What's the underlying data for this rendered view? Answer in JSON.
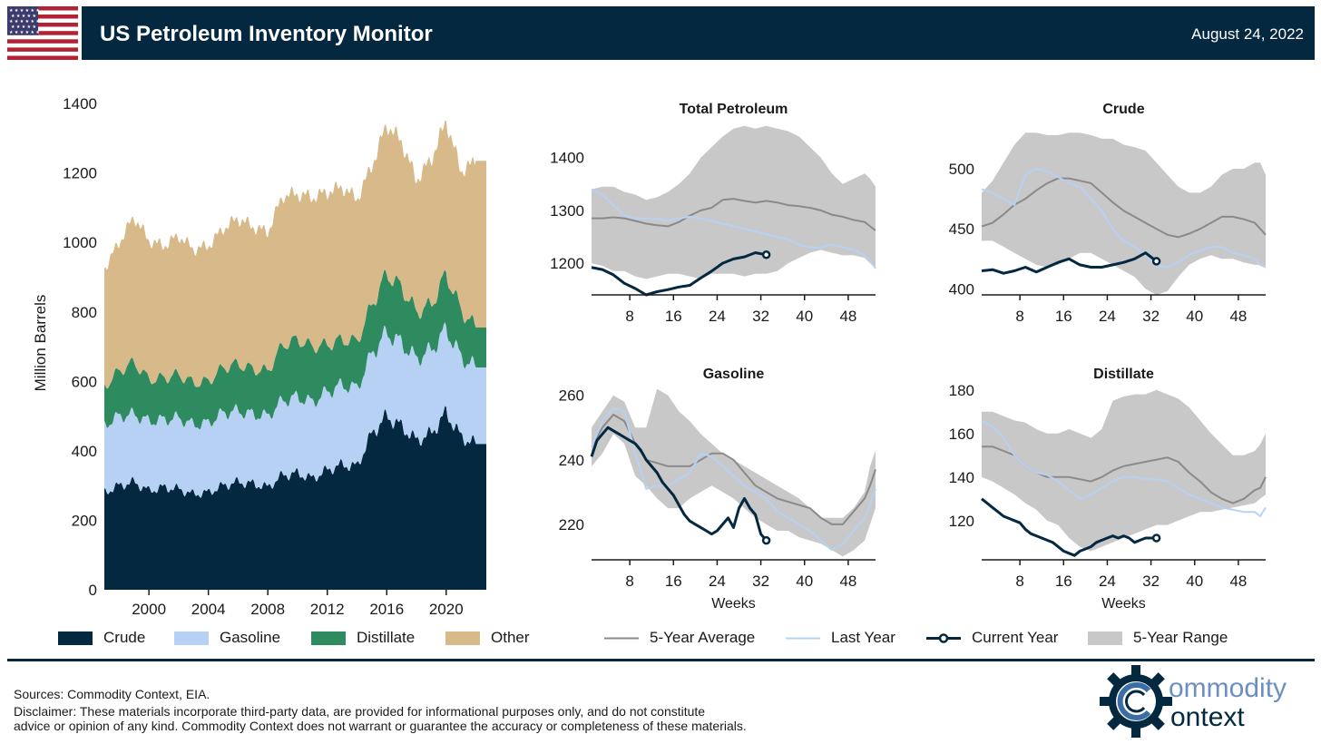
{
  "header": {
    "title": "US Petroleum Inventory Monitor",
    "date": "August 24, 2022"
  },
  "colors": {
    "navy": "#032840",
    "crude": "#032840",
    "gasoline": "#b7d1f5",
    "distillate": "#2e8b5f",
    "other": "#d7b98a",
    "range": "#c8c8c8",
    "avg": "#8a8a8a",
    "last_year": "#b7d1f5",
    "current": "#032840"
  },
  "stack_chart": {
    "ylabel": "Million Barrels",
    "yticks": [
      "0",
      "200",
      "400",
      "600",
      "800",
      "1000",
      "1200",
      "1400"
    ],
    "xticks": [
      "2000",
      "2004",
      "2008",
      "2012",
      "2016",
      "2020"
    ],
    "legend": [
      "Crude",
      "Gasoline",
      "Distillate",
      "Other"
    ]
  },
  "small_legend": [
    "5-Year Average",
    "Last Year",
    "Current Year",
    "5-Year Range"
  ],
  "footer": {
    "sources": "Sources: Commodity Context, EIA.",
    "disclaimer1": "Disclaimer: These materials incorporate third-party data, are provided for informational purposes only, and do not constitute",
    "disclaimer2": "advice or opinion of any kind. Commodity Context does not warrant or guarantee the accuracy or completeness of these materials."
  },
  "logo": {
    "text1": "ommodity",
    "text2": "ontext"
  },
  "chart_data": [
    {
      "type": "area",
      "stacked": true,
      "ylabel": "Million Barrels",
      "ylim": [
        0,
        1450
      ],
      "xlim": [
        1997,
        2022.7
      ],
      "x": [
        1997,
        1998,
        1999,
        2000,
        2001,
        2002,
        2003,
        2004,
        2005,
        2006,
        2007,
        2008,
        2009,
        2010,
        2011,
        2012,
        2013,
        2014,
        2015,
        2016,
        2017,
        2018,
        2019,
        2020,
        2021,
        2022
      ],
      "series": [
        {
          "name": "Crude",
          "values": [
            280,
            300,
            310,
            285,
            295,
            290,
            275,
            280,
            300,
            310,
            305,
            295,
            330,
            335,
            320,
            345,
            360,
            355,
            450,
            500,
            470,
            430,
            450,
            510,
            440,
            420
          ]
        },
        {
          "name": "Gasoline",
          "values": [
            195,
            200,
            195,
            200,
            195,
            205,
            200,
            200,
            210,
            205,
            200,
            205,
            215,
            220,
            220,
            225,
            230,
            225,
            230,
            240,
            240,
            235,
            240,
            240,
            230,
            220
          ]
        },
        {
          "name": "Distillate",
          "values": [
            110,
            130,
            150,
            120,
            120,
            125,
            120,
            120,
            130,
            135,
            130,
            130,
            160,
            165,
            160,
            135,
            130,
            135,
            140,
            170,
            160,
            135,
            130,
            160,
            135,
            115
          ]
        },
        {
          "name": "Other",
          "values": [
            340,
            370,
            420,
            400,
            380,
            400,
            385,
            390,
            400,
            420,
            410,
            400,
            430,
            420,
            430,
            440,
            440,
            410,
            400,
            430,
            420,
            380,
            420,
            440,
            400,
            480
          ]
        }
      ],
      "legend": "bottom"
    },
    {
      "type": "line",
      "title": "Total Petroleum",
      "xticks": [
        8,
        16,
        24,
        32,
        40,
        48
      ],
      "xlim": [
        1,
        53
      ],
      "yticks": [
        1200,
        1300,
        1400
      ],
      "ylim": [
        1140,
        1470
      ],
      "range_low": [
        1200,
        1195,
        1185,
        1185,
        1175,
        1170,
        1175,
        1180,
        1180,
        1175,
        1170,
        1180,
        1180,
        1180,
        1175,
        1180,
        1180,
        1185,
        1200,
        1210,
        1220,
        1225,
        1220,
        1215,
        1215,
        1210,
        1200,
        1190
      ],
      "range_high": [
        1340,
        1345,
        1345,
        1335,
        1330,
        1320,
        1325,
        1335,
        1350,
        1370,
        1400,
        1420,
        1440,
        1455,
        1460,
        1455,
        1460,
        1455,
        1450,
        1440,
        1420,
        1400,
        1370,
        1350,
        1360,
        1370,
        1360,
        1345
      ],
      "avg": [
        1285,
        1285,
        1287,
        1285,
        1280,
        1275,
        1272,
        1270,
        1278,
        1290,
        1300,
        1305,
        1320,
        1322,
        1318,
        1315,
        1318,
        1315,
        1310,
        1308,
        1305,
        1300,
        1292,
        1288,
        1282,
        1278,
        1270,
        1262
      ],
      "last_year": [
        1340,
        1330,
        1310,
        1290,
        1285,
        1285,
        1285,
        1280,
        1285,
        1288,
        1285,
        1280,
        1275,
        1270,
        1265,
        1260,
        1255,
        1250,
        1245,
        1235,
        1230,
        1230,
        1235,
        1230,
        1225,
        1215,
        1205,
        1190
      ],
      "last_year_x": [
        1,
        3,
        5,
        7,
        9,
        11,
        13,
        15,
        17,
        19,
        21,
        23,
        25,
        27,
        29,
        31,
        33,
        35,
        37,
        39,
        41,
        43,
        45,
        47,
        49,
        51,
        52,
        53
      ],
      "current_x": [
        1,
        3,
        5,
        7,
        9,
        11,
        13,
        15,
        17,
        19,
        21,
        23,
        25,
        27,
        29,
        31,
        33
      ],
      "current": [
        1192,
        1188,
        1178,
        1162,
        1152,
        1140,
        1146,
        1150,
        1155,
        1158,
        1172,
        1185,
        1200,
        1208,
        1212,
        1220,
        1216
      ]
    },
    {
      "type": "line",
      "title": "Crude",
      "xticks": [
        8,
        16,
        24,
        32,
        40,
        48
      ],
      "xlim": [
        1,
        53
      ],
      "yticks": [
        400,
        450,
        500
      ],
      "ylim": [
        395,
        540
      ],
      "range_low": [
        440,
        440,
        435,
        430,
        425,
        420,
        418,
        420,
        425,
        430,
        430,
        425,
        420,
        415,
        410,
        400,
        395,
        398,
        410,
        420,
        425,
        428,
        425,
        425,
        422,
        420,
        420,
        418
      ],
      "range_high": [
        480,
        490,
        505,
        520,
        530,
        530,
        528,
        528,
        530,
        530,
        528,
        525,
        525,
        520,
        518,
        515,
        505,
        495,
        485,
        480,
        480,
        485,
        495,
        500,
        500,
        505,
        505,
        495
      ],
      "avg": [
        452,
        455,
        462,
        470,
        475,
        482,
        488,
        492,
        492,
        490,
        488,
        480,
        472,
        465,
        460,
        455,
        450,
        445,
        443,
        446,
        450,
        455,
        460,
        460,
        458,
        455,
        450,
        445
      ],
      "last_year": [
        483,
        480,
        475,
        470,
        495,
        500,
        498,
        493,
        488,
        485,
        475,
        465,
        450,
        440,
        435,
        428,
        420,
        418,
        422,
        428,
        432,
        435,
        435,
        430,
        428,
        425,
        420,
        418
      ],
      "last_year_x": [
        1,
        3,
        5,
        7,
        9,
        11,
        13,
        15,
        17,
        19,
        21,
        23,
        25,
        27,
        29,
        31,
        33,
        35,
        37,
        39,
        41,
        43,
        45,
        47,
        49,
        51,
        52,
        53
      ],
      "current_x": [
        1,
        3,
        5,
        7,
        9,
        11,
        13,
        15,
        17,
        19,
        21,
        23,
        25,
        27,
        29,
        31,
        33
      ],
      "current": [
        415,
        416,
        413,
        415,
        418,
        414,
        418,
        422,
        425,
        420,
        418,
        418,
        420,
        422,
        425,
        430,
        423
      ]
    },
    {
      "type": "line",
      "title": "Gasoline",
      "xlabel": "Weeks",
      "xticks": [
        8,
        16,
        24,
        32,
        40,
        48
      ],
      "xlim": [
        1,
        53
      ],
      "yticks": [
        220,
        240,
        260
      ],
      "ylim": [
        209,
        263
      ],
      "range_low": [
        238,
        242,
        248,
        245,
        235,
        232,
        228,
        225,
        225,
        228,
        230,
        232,
        230,
        228,
        225,
        222,
        220,
        218,
        218,
        216,
        215,
        214,
        212,
        210,
        212,
        215,
        220,
        225
      ],
      "range_high": [
        250,
        255,
        260,
        258,
        250,
        250,
        262,
        260,
        255,
        252,
        248,
        245,
        242,
        240,
        238,
        236,
        234,
        232,
        230,
        228,
        225,
        222,
        222,
        222,
        225,
        230,
        238,
        243
      ],
      "avg": [
        244,
        250,
        254,
        252,
        245,
        240,
        239,
        238,
        238,
        238,
        240,
        242,
        242,
        240,
        236,
        232,
        230,
        228,
        227,
        226,
        225,
        222,
        220,
        220,
        224,
        228,
        232,
        237
      ],
      "last_year": [
        244,
        252,
        256,
        255,
        242,
        231,
        232,
        232,
        234,
        236,
        242,
        241,
        238,
        235,
        232,
        230,
        228,
        224,
        222,
        220,
        218,
        215,
        212,
        214,
        218,
        222,
        226,
        231
      ],
      "last_year_x": [
        1,
        3,
        5,
        7,
        9,
        11,
        13,
        15,
        17,
        19,
        21,
        23,
        25,
        27,
        29,
        31,
        33,
        35,
        37,
        39,
        41,
        43,
        45,
        47,
        49,
        51,
        52,
        53
      ],
      "current_x": [
        1,
        2,
        3,
        4,
        5,
        6,
        7,
        8,
        9,
        10,
        11,
        12,
        13,
        14,
        15,
        16,
        17,
        18,
        19,
        20,
        21,
        22,
        23,
        24,
        25,
        26,
        27,
        28,
        29,
        30,
        31,
        32,
        33
      ],
      "current": [
        241,
        246,
        248,
        250,
        249,
        248,
        247,
        246,
        245,
        243,
        240,
        238,
        236,
        233,
        231,
        229,
        226,
        223,
        221,
        220,
        219,
        218,
        217,
        218,
        220,
        222,
        219,
        225,
        228,
        225,
        223,
        217,
        215
      ]
    },
    {
      "type": "line",
      "title": "Distillate",
      "xlabel": "Weeks",
      "xticks": [
        8,
        16,
        24,
        32,
        40,
        48
      ],
      "xlim": [
        1,
        53
      ],
      "yticks": [
        120,
        140,
        160,
        180
      ],
      "ylim": [
        102,
        182
      ],
      "range_low": [
        140,
        138,
        135,
        132,
        128,
        125,
        120,
        118,
        112,
        108,
        106,
        108,
        110,
        112,
        114,
        116,
        118,
        118,
        120,
        122,
        124,
        124,
        125,
        126,
        127,
        128,
        130,
        132
      ],
      "range_high": [
        170,
        170,
        168,
        166,
        165,
        162,
        160,
        160,
        162,
        160,
        158,
        162,
        175,
        177,
        178,
        178,
        180,
        178,
        176,
        172,
        166,
        160,
        155,
        150,
        150,
        152,
        155,
        160
      ],
      "avg": [
        154,
        154,
        152,
        150,
        145,
        142,
        140,
        140,
        140,
        139,
        138,
        140,
        143,
        145,
        146,
        147,
        148,
        149,
        147,
        142,
        138,
        133,
        130,
        128,
        130,
        134,
        135,
        140
      ],
      "last_year": [
        166,
        163,
        158,
        150,
        145,
        142,
        141,
        138,
        134,
        130,
        132,
        135,
        138,
        140,
        140,
        139,
        139,
        138,
        135,
        132,
        130,
        128,
        126,
        125,
        124,
        124,
        122,
        126
      ],
      "last_year_x": [
        1,
        3,
        5,
        7,
        9,
        11,
        13,
        15,
        17,
        19,
        21,
        23,
        25,
        27,
        29,
        31,
        33,
        35,
        37,
        39,
        41,
        43,
        45,
        47,
        49,
        51,
        52,
        53
      ],
      "current_x": [
        1,
        2,
        3,
        4,
        5,
        6,
        7,
        8,
        9,
        10,
        11,
        12,
        13,
        14,
        15,
        16,
        17,
        18,
        19,
        20,
        21,
        22,
        23,
        24,
        25,
        26,
        27,
        28,
        29,
        30,
        31,
        32,
        33
      ],
      "current": [
        130,
        128,
        126,
        124,
        122,
        121,
        120,
        119,
        116,
        114,
        113,
        112,
        111,
        110,
        108,
        106,
        105,
        104,
        106,
        107,
        108,
        110,
        111,
        112,
        113,
        112,
        113,
        112,
        110,
        111,
        112,
        112,
        112
      ]
    }
  ]
}
